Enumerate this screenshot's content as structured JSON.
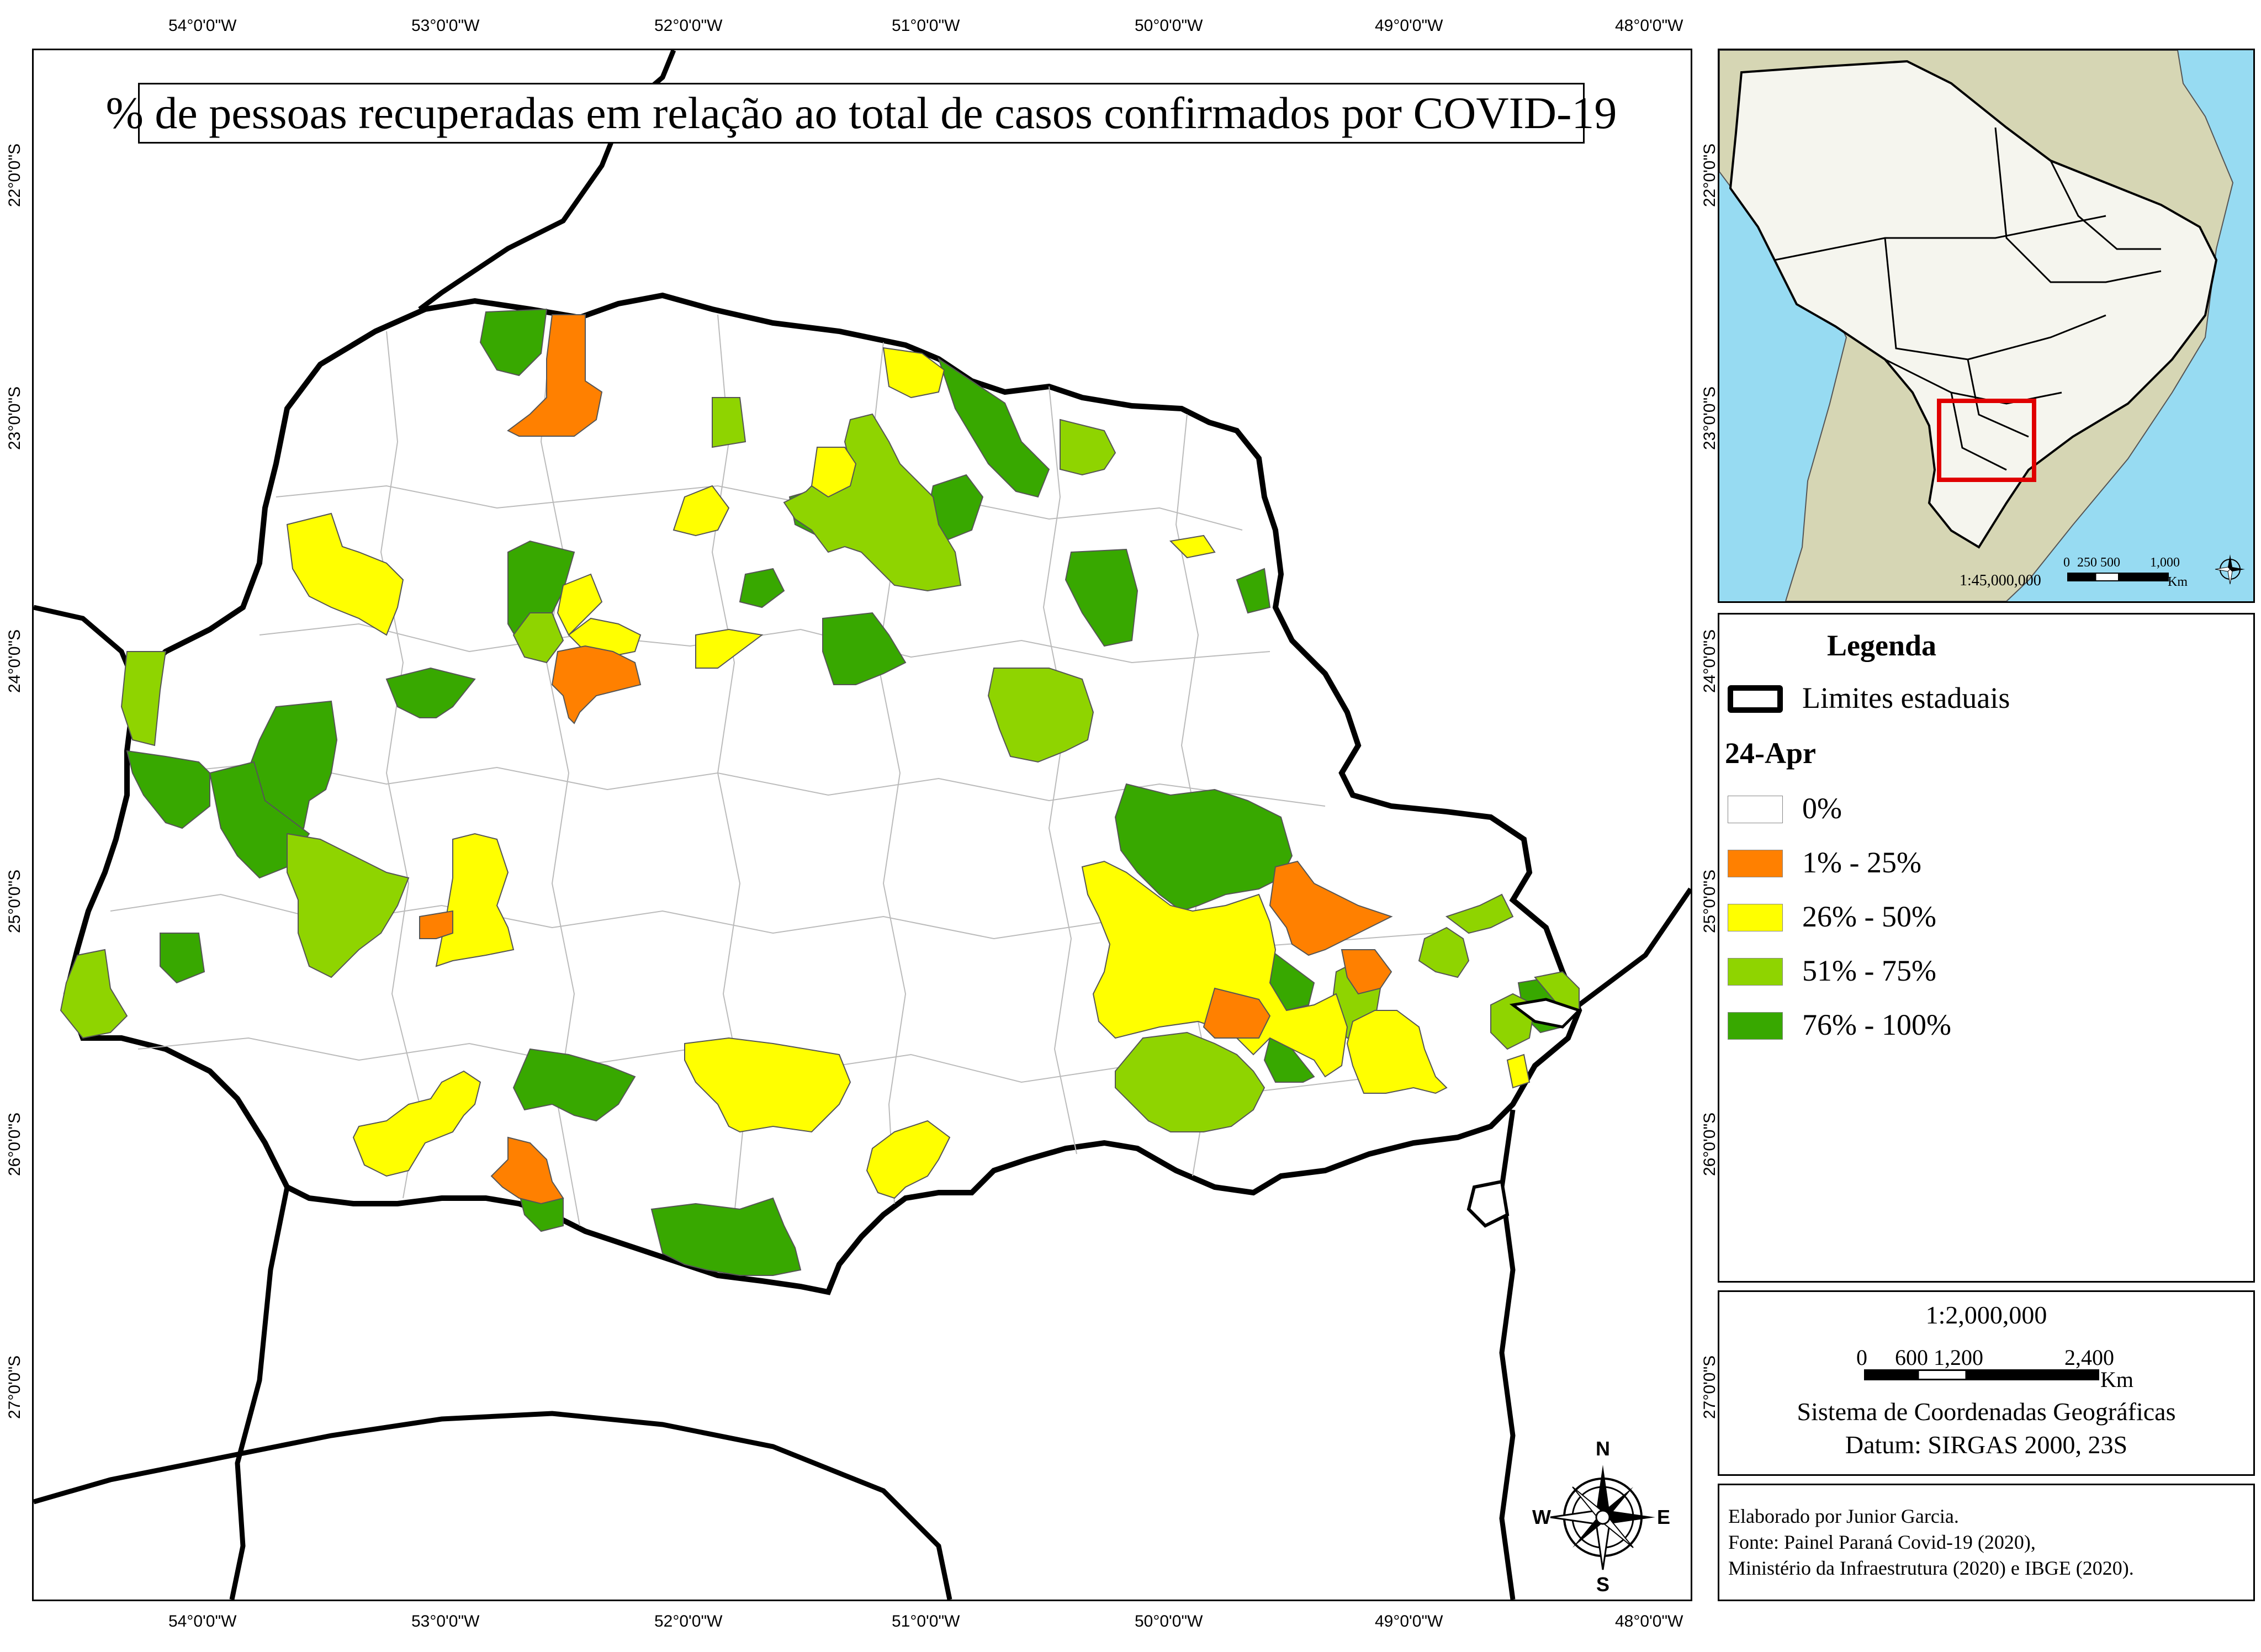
{
  "title": "% de pessoas recuperadas em relação ao total de casos confirmados por COVID-19",
  "longitude_labels": [
    "54°0'0\"W",
    "53°0'0\"W",
    "52°0'0\"W",
    "51°0'0\"W",
    "50°0'0\"W",
    "49°0'0\"W",
    "48°0'0\"W"
  ],
  "latitude_labels": [
    "22°0'0\"S",
    "23°0'0\"S",
    "24°0'0\"S",
    "25°0'0\"S",
    "26°0'0\"S",
    "27°0'0\"S"
  ],
  "legend": {
    "title": "Legenda",
    "boundary_label": "Limites estaduais",
    "date_label": "24-Apr",
    "classes": [
      {
        "label": "0%",
        "color": "#ffffff"
      },
      {
        "label": "1% - 25%",
        "color": "#ff8000"
      },
      {
        "label": "26% - 50%",
        "color": "#ffff00"
      },
      {
        "label": "51% - 75%",
        "color": "#8fd400"
      },
      {
        "label": "76% - 100%",
        "color": "#38a800"
      }
    ]
  },
  "scale": {
    "ratio": "1:2,000,000",
    "ticks": [
      "0",
      "600",
      "1,200",
      "2,400"
    ],
    "unit": "Km",
    "crs_line1": "Sistema de Coordenadas Geográficas",
    "crs_line2": "Datum: SIRGAS 2000, 23S"
  },
  "inset": {
    "scale_ratio": "1:45,000,000",
    "ticks": [
      "0",
      "250",
      "500",
      "1,000"
    ],
    "unit": "Km",
    "ocean_color": "#97dbf2",
    "land_color": "#d6d6b4",
    "brazil_color": "#f5f5ee",
    "highlight_color": "#e00000"
  },
  "compass": {
    "n": "N",
    "s": "S",
    "e": "E",
    "w": "W"
  },
  "credits": [
    "Elaborado por Junior Garcia.",
    "Fonte: Painel Paraná Covid-19 (2020),",
    "Ministério da Infraestrutura (2020) e IBGE (2020)."
  ]
}
